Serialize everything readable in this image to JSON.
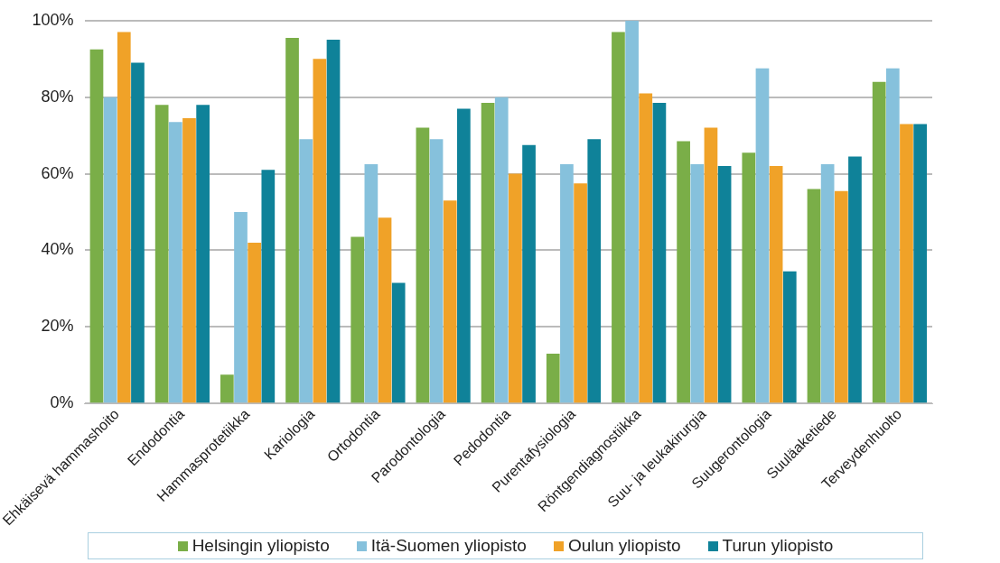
{
  "chart_data": {
    "type": "bar",
    "categories": [
      "Ehkäisevä hammashoito",
      "Endodontia",
      "Hammasprotetiikka",
      "Kariologia",
      "Ortodontia",
      "Parodontologia",
      "Pedodontia",
      "Purentafysiologia",
      "Röntgendiagnostiikka",
      "Suu- ja leukakirurgia",
      "Suugerontologia",
      "Suuläaketiede",
      "Terveydenhuolto"
    ],
    "series": [
      {
        "name": "Helsingin yliopisto",
        "color": "#7aae48",
        "values": [
          92.5,
          78,
          7.5,
          95.5,
          43.5,
          72,
          78.5,
          13,
          97,
          68.5,
          65.5,
          56,
          84
        ]
      },
      {
        "name": "Itä-Suomen yliopisto",
        "color": "#86c1dc",
        "values": [
          80,
          73.5,
          50,
          69,
          62.5,
          69,
          80,
          62.5,
          100,
          62.5,
          87.5,
          62.5,
          87.5
        ]
      },
      {
        "name": "Oulun yliopisto",
        "color": "#f0a228",
        "values": [
          97,
          74.5,
          42,
          90,
          48.5,
          53,
          60,
          57.5,
          81,
          72,
          62,
          55.5,
          73
        ]
      },
      {
        "name": "Turun yliopisto",
        "color": "#0f8299",
        "values": [
          89,
          78,
          61,
          95,
          31.5,
          77,
          67.5,
          69,
          78.5,
          62,
          34.5,
          64.5,
          73
        ]
      }
    ],
    "ylim": [
      0,
      100
    ],
    "yticks": [
      {
        "value": 0,
        "label": "0%"
      },
      {
        "value": 20,
        "label": "20%"
      },
      {
        "value": 40,
        "label": "40%"
      },
      {
        "value": 60,
        "label": "60%"
      },
      {
        "value": 80,
        "label": "80%"
      },
      {
        "value": 100,
        "label": "100%"
      }
    ],
    "grid": "y",
    "legend": "bottom"
  }
}
